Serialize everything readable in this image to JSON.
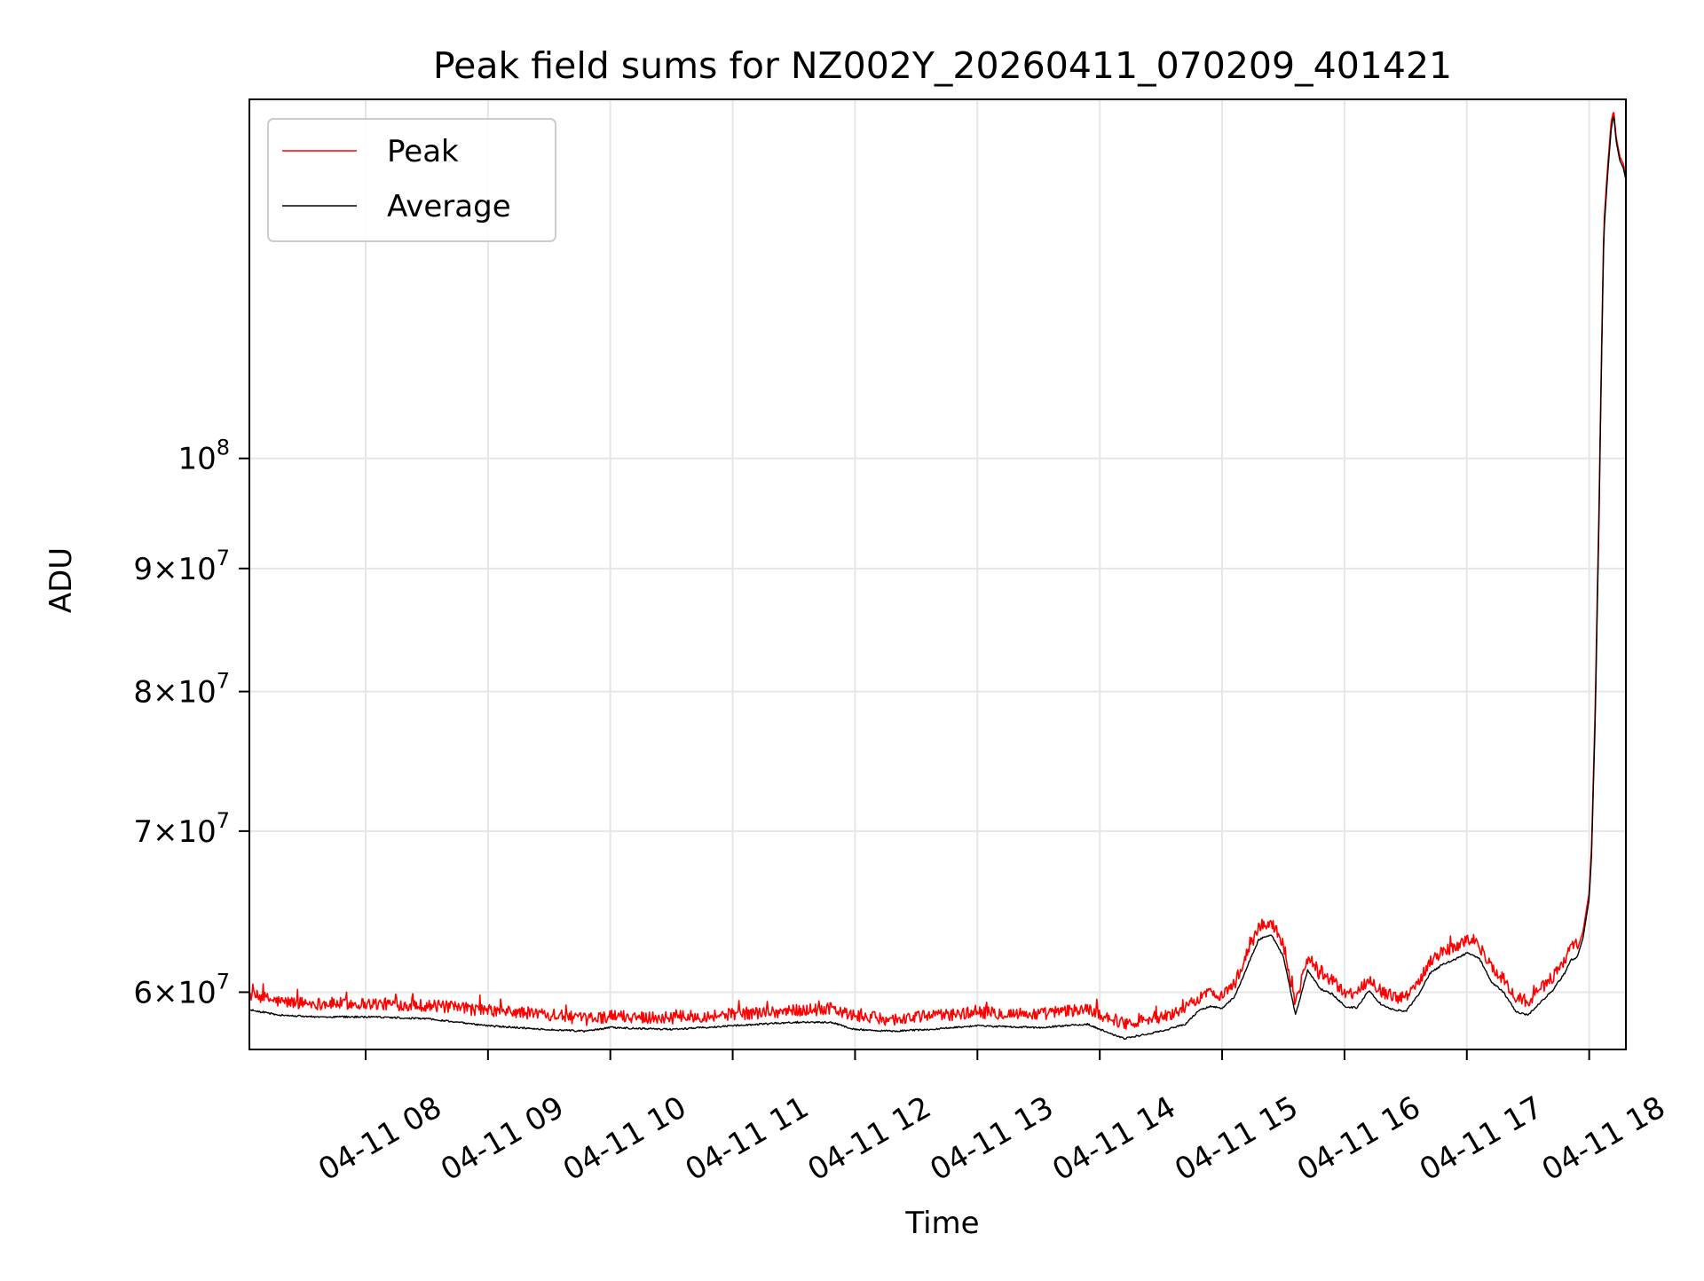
{
  "chart_data": {
    "type": "line",
    "title": "Peak field sums for NZ002Y_20260411_070209_401421",
    "xlabel": "Time",
    "ylabel": "ADU",
    "x_unit": "hour of 2026-04-11",
    "xlim": [
      7.05,
      18.3
    ],
    "ylim": [
      56800000,
      141000000
    ],
    "y_scale": "log",
    "grid": true,
    "legend_position": "top-left",
    "x_ticks": [
      {
        "value": 8,
        "label": "04-11 08"
      },
      {
        "value": 9,
        "label": "04-11 09"
      },
      {
        "value": 10,
        "label": "04-11 10"
      },
      {
        "value": 11,
        "label": "04-11 11"
      },
      {
        "value": 12,
        "label": "04-11 12"
      },
      {
        "value": 13,
        "label": "04-11 13"
      },
      {
        "value": 14,
        "label": "04-11 14"
      },
      {
        "value": 15,
        "label": "04-11 15"
      },
      {
        "value": 16,
        "label": "04-11 16"
      },
      {
        "value": 17,
        "label": "04-11 17"
      },
      {
        "value": 18,
        "label": "04-11 18"
      }
    ],
    "y_ticks": [
      {
        "value": 60000000,
        "mantissa": "6",
        "base": "10",
        "exp": "7"
      },
      {
        "value": 70000000,
        "mantissa": "7",
        "base": "10",
        "exp": "7"
      },
      {
        "value": 80000000,
        "mantissa": "8",
        "base": "10",
        "exp": "7"
      },
      {
        "value": 90000000,
        "mantissa": "9",
        "base": "10",
        "exp": "7"
      },
      {
        "value": 100000000,
        "mantissa": "",
        "base": "10",
        "exp": "8"
      }
    ],
    "series": [
      {
        "name": "Peak",
        "color": "#ff0000",
        "noise": 1.0,
        "noise_upward": true,
        "x": [
          7.05,
          7.3,
          7.6,
          8.0,
          8.5,
          9.0,
          9.5,
          9.8,
          10.0,
          10.5,
          11.0,
          11.5,
          11.8,
          12.0,
          12.3,
          12.6,
          13.0,
          13.5,
          13.9,
          14.0,
          14.2,
          14.5,
          14.7,
          14.8,
          14.9,
          15.0,
          15.1,
          15.2,
          15.3,
          15.4,
          15.5,
          15.6,
          15.7,
          15.8,
          15.9,
          16.0,
          16.1,
          16.2,
          16.3,
          16.4,
          16.5,
          16.6,
          16.7,
          16.8,
          16.9,
          17.0,
          17.1,
          17.2,
          17.3,
          17.4,
          17.5,
          17.6,
          17.7,
          17.8,
          17.85,
          17.9,
          17.95,
          18.0,
          18.02,
          18.05,
          18.08,
          18.1,
          18.12,
          18.15,
          18.18,
          18.2,
          18.22,
          18.25,
          18.28,
          18.3
        ],
        "y": [
          59500000,
          59100000,
          59000000,
          59000000,
          58900000,
          58600000,
          58400000,
          58100000,
          58300000,
          58200000,
          58400000,
          58600000,
          58700000,
          58300000,
          58100000,
          58300000,
          58500000,
          58400000,
          58700000,
          58400000,
          57900000,
          58200000,
          58700000,
          59300000,
          59600000,
          59500000,
          60100000,
          61800000,
          63500000,
          63800000,
          62500000,
          59000000,
          61700000,
          60600000,
          60300000,
          59600000,
          59500000,
          60500000,
          59700000,
          59400000,
          59300000,
          60200000,
          61500000,
          62000000,
          62300000,
          62700000,
          62400000,
          61000000,
          60400000,
          59300000,
          59100000,
          59800000,
          60500000,
          61500000,
          62300000,
          62400000,
          63600000,
          66000000,
          69000000,
          79000000,
          95000000,
          110000000,
          125000000,
          132000000,
          138000000,
          139500000,
          136000000,
          133500000,
          132500000,
          131000000
        ]
      },
      {
        "name": "Average",
        "color": "#000000",
        "noise": 0.25,
        "noise_upward": false,
        "x": [
          7.05,
          7.3,
          7.6,
          8.0,
          8.5,
          9.0,
          9.5,
          9.8,
          10.0,
          10.5,
          11.0,
          11.5,
          11.8,
          12.0,
          12.3,
          12.6,
          13.0,
          13.5,
          13.9,
          14.0,
          14.2,
          14.5,
          14.7,
          14.8,
          14.9,
          15.0,
          15.1,
          15.2,
          15.3,
          15.4,
          15.5,
          15.6,
          15.7,
          15.8,
          15.9,
          16.0,
          16.1,
          16.2,
          16.3,
          16.4,
          16.5,
          16.6,
          16.7,
          16.8,
          16.9,
          17.0,
          17.1,
          17.2,
          17.3,
          17.4,
          17.5,
          17.6,
          17.7,
          17.8,
          17.85,
          17.9,
          17.95,
          18.0,
          18.02,
          18.05,
          18.08,
          18.1,
          18.12,
          18.15,
          18.18,
          18.2,
          18.22,
          18.25,
          18.28,
          18.3
        ],
        "y": [
          59000000,
          58700000,
          58600000,
          58600000,
          58500000,
          58100000,
          57900000,
          57800000,
          58000000,
          57900000,
          58100000,
          58300000,
          58300000,
          57900000,
          57800000,
          57900000,
          58100000,
          58000000,
          58200000,
          57900000,
          57400000,
          57800000,
          58200000,
          58900000,
          59200000,
          59100000,
          59700000,
          61400000,
          63100000,
          63400000,
          62100000,
          58700000,
          61300000,
          60200000,
          59900000,
          59200000,
          59100000,
          60100000,
          59300000,
          59000000,
          58900000,
          59800000,
          61100000,
          61600000,
          61900000,
          62300000,
          62000000,
          60600000,
          60000000,
          58900000,
          58700000,
          59400000,
          60100000,
          61100000,
          61900000,
          62000000,
          63200000,
          65600000,
          68500000,
          78000000,
          94000000,
          109000000,
          124000000,
          131000000,
          137000000,
          139000000,
          135500000,
          133000000,
          132000000,
          130500000
        ]
      }
    ]
  }
}
